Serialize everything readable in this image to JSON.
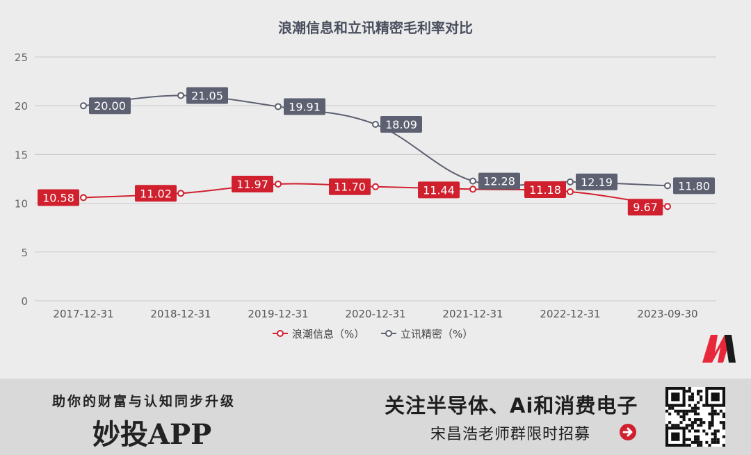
{
  "chart_data": {
    "type": "line",
    "title": "浪潮信息和立讯精密毛利率对比",
    "categories": [
      "2017-12-31",
      "2018-12-31",
      "2019-12-31",
      "2020-12-31",
      "2021-12-31",
      "2022-12-31",
      "2023-09-30"
    ],
    "ylim": [
      0,
      25
    ],
    "yticks": [
      "0",
      "5",
      "10",
      "15",
      "20",
      "25"
    ],
    "grid": "horizontal",
    "legend_position": "bottom",
    "series": [
      {
        "name": "浪潮信息（%）",
        "color": "#d0202e",
        "values": [
          10.58,
          11.02,
          11.97,
          11.7,
          11.44,
          11.18,
          9.67
        ],
        "labels": [
          "10.58",
          "11.02",
          "11.97",
          "11.70",
          "11.44",
          "11.18",
          "9.67"
        ]
      },
      {
        "name": "立讯精密（%）",
        "color": "#5c6070",
        "values": [
          20.0,
          21.05,
          19.91,
          18.09,
          12.28,
          12.19,
          11.8
        ],
        "labels": [
          "20.00",
          "21.05",
          "19.91",
          "18.09",
          "12.28",
          "12.19",
          "11.80"
        ]
      }
    ]
  },
  "footer": {
    "slogan": "助你的财富与认知同步升级",
    "app_name": "妙投APP",
    "promo": "关注半导体、Ai和消费电子",
    "recruit": "宋昌浩老师群限时招募"
  },
  "icons": {
    "arrow": "arrow-right-circle-icon",
    "qr": "qr-code-icon",
    "logo": "brand-logo-icon"
  }
}
